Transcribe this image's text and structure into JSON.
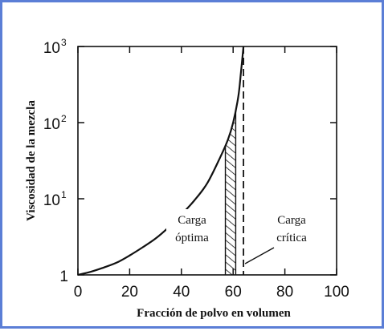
{
  "chart_data": {
    "type": "line",
    "title": "",
    "xlabel": "Fracción de polvo en volumen",
    "ylabel": "Viscosidad de la mezcla",
    "xlim": [
      0,
      100
    ],
    "ylim": [
      1,
      1000
    ],
    "y_scale": "log",
    "grid": false,
    "x_ticks": [
      0,
      20,
      40,
      60,
      80,
      100
    ],
    "y_ticks": [
      {
        "base": "1",
        "exp": ""
      },
      {
        "base": "10",
        "exp": "1"
      },
      {
        "base": "10",
        "exp": "2"
      },
      {
        "base": "10",
        "exp": "3"
      }
    ],
    "series": [
      {
        "x": [
          0,
          5,
          10,
          15,
          20,
          25,
          30,
          35,
          40,
          45,
          50,
          55,
          58,
          60,
          62,
          63,
          64
        ],
        "values": [
          1,
          1.1,
          1.25,
          1.45,
          1.8,
          2.3,
          3.0,
          4.2,
          6.2,
          9.5,
          16,
          35,
          60,
          100,
          220,
          450,
          1000
        ],
        "style": "solid"
      }
    ],
    "critical_load": {
      "x": 64,
      "style": "dashed"
    },
    "optimal_band": {
      "x_range": [
        57,
        61
      ],
      "style": "hatched"
    },
    "annotations": [
      {
        "lines": [
          "Carga",
          "óptima"
        ],
        "target_x": 59
      },
      {
        "lines": [
          "Carga",
          "crítica"
        ],
        "target_x": 64
      }
    ]
  }
}
